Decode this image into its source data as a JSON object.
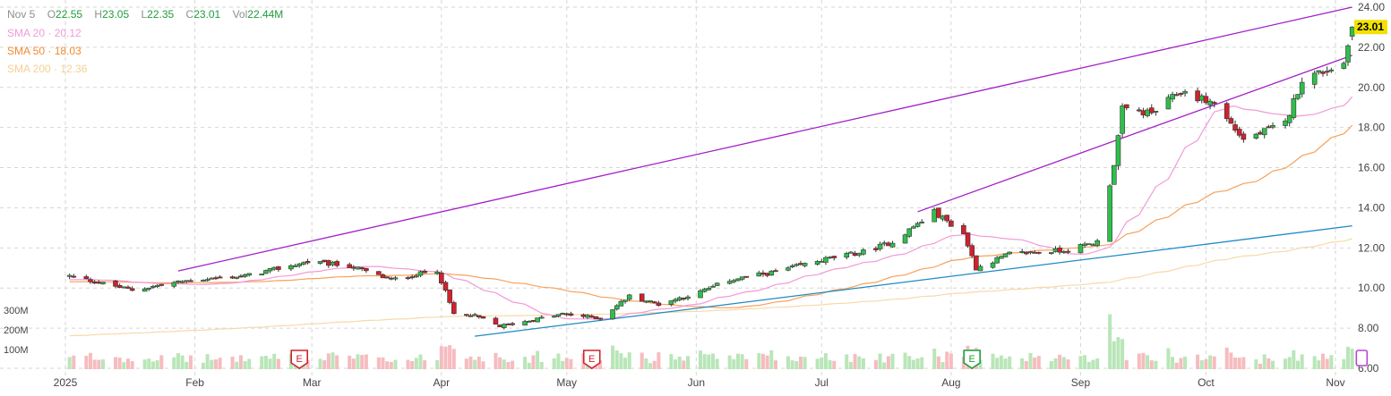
{
  "legend": {
    "date": "Nov 5",
    "open_label": "O",
    "open": "22.55",
    "high_label": "H",
    "high": "23.05",
    "low_label": "L",
    "low": "22.35",
    "close_label": "C",
    "close": "23.01",
    "vol_label": "Vol",
    "vol": "22.44M",
    "sma20_label": "SMA 20",
    "sma20": "20.12",
    "sma50_label": "SMA 50",
    "sma50": "18.03",
    "sma200_label": "SMA 200",
    "sma200": "12.36"
  },
  "colors": {
    "up": "#2fbf4a",
    "down": "#d0212d",
    "vol_up": "#b9e6b8",
    "vol_down": "#f6bcbf",
    "sma20": "#f29ad8",
    "sma50": "#f7a15a",
    "sma200": "#f7d9a8",
    "trend_purple": "#a21fc7",
    "trend_blue": "#1f8ac2",
    "grid": "#d6d6d6",
    "last_price_bg": "#f2e100"
  },
  "chart_data": {
    "type": "candlestick",
    "price_axis": {
      "ticks": [
        "24.00",
        "22.00",
        "20.00",
        "18.00",
        "16.00",
        "14.00",
        "12.00",
        "10.00",
        "8.00",
        "6.00"
      ],
      "ylim": [
        6,
        24
      ]
    },
    "volume_axis": {
      "ticks": [
        "300M",
        "200M",
        "100M"
      ]
    },
    "x_ticks": [
      "2025",
      "Feb",
      "Mar",
      "Apr",
      "May",
      "Jun",
      "Jul",
      "Aug",
      "Sep",
      "Oct",
      "Nov"
    ],
    "last_price": "23.01",
    "anchors": [
      [
        "2025-01-02",
        10.6
      ],
      [
        "2025-01-17",
        9.9
      ],
      [
        "2025-01-31",
        10.4
      ],
      [
        "2025-02-13",
        10.6
      ],
      [
        "2025-02-28",
        11.3
      ],
      [
        "2025-03-10",
        11.1
      ],
      [
        "2025-03-20",
        10.4
      ],
      [
        "2025-03-31",
        10.9
      ],
      [
        "2025-04-04",
        8.7
      ],
      [
        "2025-04-09",
        8.6
      ],
      [
        "2025-04-15",
        8.1
      ],
      [
        "2025-04-30",
        8.7
      ],
      [
        "2025-05-09",
        8.5
      ],
      [
        "2025-05-16",
        9.6
      ],
      [
        "2025-05-23",
        9.2
      ],
      [
        "2025-06-02",
        9.8
      ],
      [
        "2025-06-09",
        10.4
      ],
      [
        "2025-06-20",
        10.8
      ],
      [
        "2025-07-01",
        11.4
      ],
      [
        "2025-07-11",
        11.8
      ],
      [
        "2025-07-18",
        12.3
      ],
      [
        "2025-07-28",
        13.8
      ],
      [
        "2025-08-04",
        12.7
      ],
      [
        "2025-08-07",
        11.0
      ],
      [
        "2025-08-15",
        11.7
      ],
      [
        "2025-08-29",
        11.9
      ],
      [
        "2025-09-05",
        12.3
      ],
      [
        "2025-09-09",
        16.2
      ],
      [
        "2025-09-11",
        18.9
      ],
      [
        "2025-09-18",
        18.7
      ],
      [
        "2025-09-25",
        19.8
      ],
      [
        "2025-10-03",
        19.2
      ],
      [
        "2025-10-10",
        17.4
      ],
      [
        "2025-10-20",
        18.2
      ],
      [
        "2025-10-24",
        20.4
      ],
      [
        "2025-11-03",
        21.2
      ],
      [
        "2025-11-05",
        23.01
      ]
    ],
    "trendlines": [
      {
        "from": [
          "2025-01-28",
          10.85
        ],
        "to": [
          "2025-11-05",
          24.0
        ]
      },
      {
        "from": [
          "2025-07-24",
          13.8
        ],
        "to": [
          "2025-11-05",
          21.6
        ]
      },
      {
        "from": [
          "2025-04-09",
          7.6
        ],
        "to": [
          "2025-11-05",
          13.1
        ]
      }
    ],
    "earnings_markers": [
      {
        "date": "2025-02-26",
        "label": "E"
      },
      {
        "date": "2025-05-07",
        "label": "E"
      },
      {
        "date": "2025-08-06",
        "label": "E"
      }
    ]
  }
}
